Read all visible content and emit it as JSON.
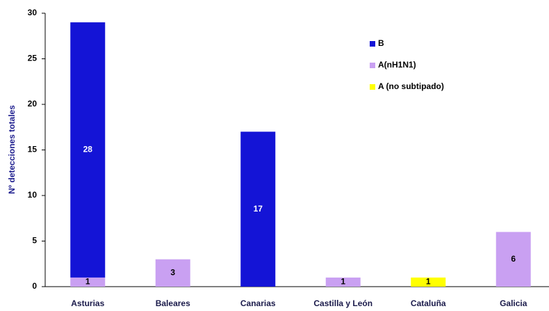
{
  "chart_data": {
    "type": "stacked_bar",
    "y_label": "Nº detecciones totales",
    "categories": [
      "Asturias",
      "Baleares",
      "Canarias",
      "Castilla y León",
      "Cataluña",
      "Galicia"
    ],
    "series": [
      {
        "name": "B",
        "color": "#1414d6",
        "values": [
          28,
          0,
          17,
          0,
          0,
          0
        ]
      },
      {
        "name": "A(nH1N1)",
        "color": "#c9a0f2",
        "values": [
          1,
          3,
          0,
          1,
          0,
          6
        ]
      },
      {
        "name": "A (no subtipado)",
        "color": "#ffff00",
        "values": [
          0,
          0,
          0,
          0,
          1,
          0
        ]
      }
    ],
    "ylim": [
      0,
      30
    ],
    "yticks": [
      0,
      5,
      10,
      15,
      20,
      25,
      30
    ],
    "grid": false,
    "legend": "upper-right"
  }
}
